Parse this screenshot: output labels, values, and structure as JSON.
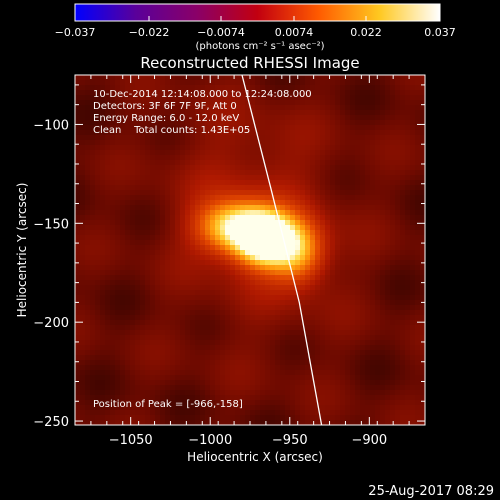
{
  "chart_data": {
    "type": "heatmap",
    "title": "Reconstructed RHESSI Image",
    "xlabel": "Heliocentric X (arcsec)",
    "ylabel": "Heliocentric Y (arcsec)",
    "xlim": [
      -1085,
      -865
    ],
    "ylim": [
      -252,
      -75
    ],
    "x_ticks": [
      -1050,
      -1000,
      -950,
      -900
    ],
    "y_ticks": [
      -100,
      -150,
      -200,
      -250
    ],
    "x_tick_labels": [
      "−1050",
      "−1000",
      "−950",
      "−900"
    ],
    "y_tick_labels": [
      "−100",
      "−150",
      "−200",
      "−250"
    ],
    "colorbar": {
      "range": [
        -0.037,
        0.037
      ],
      "ticks": [
        -0.037,
        -0.022,
        -0.0074,
        0.0074,
        0.022,
        0.037
      ],
      "tick_labels": [
        "−0.037",
        "−0.022",
        "−0.0074",
        "0.0074",
        "0.022",
        "0.037"
      ],
      "unit": "(photons cm⁻² s⁻¹ asec⁻²)",
      "colors": [
        "#0000ff",
        "#5a009a",
        "#8a0068",
        "#c20010",
        "#ff5a00",
        "#ffc820",
        "#ffffff"
      ]
    },
    "annotations": [
      "10-Dec-2014 12:14:08.000 to 12:24:08.000",
      "Detectors: 3F 6F 7F 9F, Att 0",
      "Energy Range: 6.0 - 12.0 keV",
      "Clean    Total counts: 1.43E+05"
    ],
    "peak_label": "Position of Peak = [-966,-158]",
    "peak": [
      -966,
      -158
    ],
    "sources": [
      {
        "x": -966,
        "y": -158,
        "amplitude": 1.0,
        "sx": 12,
        "sy": 9
      },
      {
        "x": -985,
        "y": -152,
        "amplitude": 0.7,
        "sx": 16,
        "sy": 9
      },
      {
        "x": -945,
        "y": -164,
        "amplitude": 0.55,
        "sx": 12,
        "sy": 11
      }
    ],
    "limb": {
      "x": [
        -980,
        -962,
        -944,
        -930
      ],
      "y": [
        -75,
        -132,
        -190,
        -252
      ]
    }
  },
  "timestamp": "25-Aug-2017 08:29"
}
